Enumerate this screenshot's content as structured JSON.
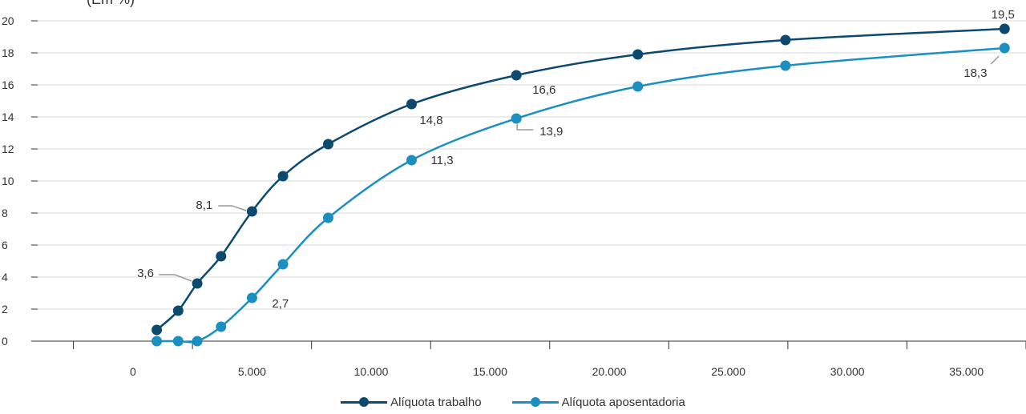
{
  "header": {
    "title_fragment": "(Em %)"
  },
  "colors": {
    "series1": "#0b4a6e",
    "series2": "#1a8fc0",
    "grid": "#d9d9d9",
    "axis": "#333333",
    "leader": "#999999"
  },
  "chart_data": {
    "type": "line",
    "xlabel": "",
    "ylabel": "",
    "xlim": [
      -4000,
      37500
    ],
    "ylim": [
      0,
      20
    ],
    "y_ticks": [
      "0",
      "2",
      "4",
      "6",
      "8",
      "10",
      "12",
      "14",
      "16",
      "18",
      "20"
    ],
    "x_ticks": [
      {
        "value": 0,
        "label": "0"
      },
      {
        "value": 5000,
        "label": "5.000"
      },
      {
        "value": 10000,
        "label": "10.000"
      },
      {
        "value": 15000,
        "label": "15.000"
      },
      {
        "value": 20000,
        "label": "20.000"
      },
      {
        "value": 25000,
        "label": "25.000"
      },
      {
        "value": 30000,
        "label": "30.000"
      },
      {
        "value": 35000,
        "label": "35.000"
      }
    ],
    "grid": true,
    "legend_position": "bottom-center",
    "series": [
      {
        "name": "Alíquota trabalho",
        "x": [
          1000,
          1900,
          2700,
          3700,
          5000,
          6300,
          8200,
          11700,
          16100,
          21200,
          27400,
          36600
        ],
        "y": [
          0.7,
          1.9,
          3.6,
          5.3,
          8.1,
          10.3,
          12.3,
          14.8,
          16.6,
          17.9,
          18.8,
          19.5
        ],
        "labels": [
          {
            "index": 2,
            "text": "3,6"
          },
          {
            "index": 4,
            "text": "8,1"
          },
          {
            "index": 7,
            "text": "14,8"
          },
          {
            "index": 8,
            "text": "16,6"
          },
          {
            "index": 11,
            "text": "19,5"
          }
        ]
      },
      {
        "name": "Alíquota aposentadoria",
        "x": [
          1000,
          1900,
          2700,
          3700,
          5000,
          6300,
          8200,
          11700,
          16100,
          21200,
          27400,
          36600
        ],
        "y": [
          0,
          0,
          0,
          0.9,
          2.7,
          4.8,
          7.7,
          11.3,
          13.9,
          15.9,
          17.2,
          18.3
        ],
        "labels": [
          {
            "index": 4,
            "text": "2,7"
          },
          {
            "index": 7,
            "text": "11,3"
          },
          {
            "index": 8,
            "text": "13,9"
          },
          {
            "index": 11,
            "text": "18,3"
          }
        ]
      }
    ]
  }
}
